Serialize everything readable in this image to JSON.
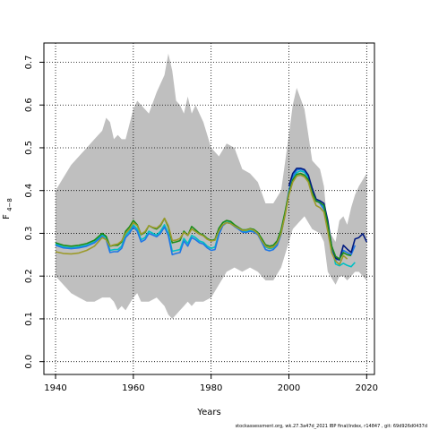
{
  "chart_data": {
    "type": "line",
    "title": "",
    "xlabel": "Years",
    "ylabel": "F",
    "ylabel_subscript": "4−8",
    "xlim": [
      1937,
      2022
    ],
    "ylim": [
      -0.03,
      0.745
    ],
    "xticks": [
      1940,
      1960,
      1980,
      2000,
      2020
    ],
    "yticks": [
      0.0,
      0.1,
      0.2,
      0.3,
      0.4,
      0.5,
      0.6,
      0.7
    ],
    "grid": true,
    "band": {
      "x": [
        1940,
        1942,
        1944,
        1946,
        1948,
        1950,
        1952,
        1953,
        1954,
        1955,
        1956,
        1957,
        1958,
        1960,
        1961,
        1962,
        1964,
        1966,
        1968,
        1969,
        1970,
        1971,
        1972,
        1973,
        1974,
        1975,
        1976,
        1977,
        1978,
        1980,
        1982,
        1984,
        1986,
        1988,
        1990,
        1992,
        1994,
        1996,
        1998,
        2000,
        2001,
        2002,
        2004,
        2006,
        2008,
        2009,
        2010,
        2012,
        2013,
        2014,
        2015,
        2016,
        2017,
        2018,
        2020
      ],
      "upper": [
        0.4,
        0.43,
        0.46,
        0.48,
        0.5,
        0.52,
        0.54,
        0.57,
        0.56,
        0.52,
        0.53,
        0.52,
        0.52,
        0.59,
        0.61,
        0.6,
        0.58,
        0.63,
        0.67,
        0.72,
        0.68,
        0.61,
        0.6,
        0.58,
        0.62,
        0.58,
        0.6,
        0.58,
        0.56,
        0.5,
        0.48,
        0.51,
        0.5,
        0.45,
        0.44,
        0.42,
        0.37,
        0.37,
        0.4,
        0.53,
        0.6,
        0.64,
        0.59,
        0.47,
        0.45,
        0.41,
        0.31,
        0.28,
        0.33,
        0.34,
        0.32,
        0.36,
        0.39,
        0.41,
        0.44
      ],
      "lower": [
        0.2,
        0.18,
        0.16,
        0.15,
        0.14,
        0.14,
        0.15,
        0.15,
        0.15,
        0.14,
        0.12,
        0.13,
        0.12,
        0.15,
        0.16,
        0.14,
        0.14,
        0.15,
        0.13,
        0.11,
        0.1,
        0.11,
        0.12,
        0.13,
        0.14,
        0.13,
        0.14,
        0.14,
        0.14,
        0.15,
        0.18,
        0.21,
        0.22,
        0.21,
        0.22,
        0.21,
        0.19,
        0.19,
        0.22,
        0.28,
        0.31,
        0.32,
        0.34,
        0.31,
        0.3,
        0.28,
        0.21,
        0.18,
        0.2,
        0.2,
        0.19,
        0.2,
        0.21,
        0.21,
        0.19
      ]
    },
    "x": [
      1940,
      1942,
      1944,
      1946,
      1948,
      1950,
      1952,
      1953,
      1954,
      1955,
      1956,
      1957,
      1958,
      1959,
      1960,
      1961,
      1962,
      1963,
      1964,
      1965,
      1966,
      1967,
      1968,
      1969,
      1970,
      1971,
      1972,
      1973,
      1974,
      1975,
      1976,
      1977,
      1978,
      1979,
      1980,
      1981,
      1982,
      1983,
      1984,
      1985,
      1986,
      1987,
      1988,
      1989,
      1990,
      1991,
      1992,
      1993,
      1994,
      1995,
      1996,
      1997,
      1998,
      1999,
      2000,
      2001,
      2002,
      2003,
      2004,
      2005,
      2006,
      2007,
      2008,
      2009,
      2010,
      2011,
      2012,
      2013,
      2014,
      2015,
      2016,
      2017,
      2018,
      2019,
      2020
    ],
    "series": [
      {
        "color": "#00bfc4",
        "values": [
          0.275,
          0.268,
          0.266,
          0.268,
          0.272,
          0.28,
          0.297,
          0.29,
          0.26,
          0.262,
          0.262,
          0.27,
          0.295,
          0.305,
          0.32,
          0.31,
          0.285,
          0.29,
          0.305,
          0.3,
          0.296,
          0.305,
          0.32,
          0.3,
          0.258,
          0.26,
          0.262,
          0.288,
          0.276,
          0.295,
          0.29,
          0.282,
          0.279,
          0.27,
          0.265,
          0.268,
          0.3,
          0.32,
          0.326,
          0.325,
          0.318,
          0.312,
          0.305,
          0.304,
          0.307,
          0.305,
          0.3,
          0.285,
          0.268,
          0.264,
          0.266,
          0.275,
          0.3,
          0.345,
          0.395,
          0.425,
          0.442,
          0.446,
          0.443,
          0.43,
          0.4,
          0.378,
          0.372,
          0.36,
          0.32,
          0.27,
          0.228,
          0.224,
          0.23,
          0.225,
          0.222,
          0.232,
          null,
          null,
          null
        ]
      },
      {
        "color": "#1f77e6",
        "values": [
          0.272,
          0.266,
          0.264,
          0.266,
          0.27,
          0.278,
          0.293,
          0.285,
          0.255,
          0.257,
          0.257,
          0.265,
          0.29,
          0.3,
          0.315,
          0.305,
          0.28,
          0.285,
          0.3,
          0.296,
          0.292,
          0.3,
          0.315,
          0.295,
          0.25,
          0.253,
          0.255,
          0.282,
          0.27,
          0.29,
          0.285,
          0.278,
          0.275,
          0.266,
          0.26,
          0.262,
          0.297,
          0.318,
          0.325,
          0.323,
          0.316,
          0.31,
          0.303,
          0.302,
          0.305,
          0.303,
          0.297,
          0.28,
          0.262,
          0.259,
          0.262,
          0.272,
          0.298,
          0.345,
          0.4,
          0.432,
          0.448,
          0.45,
          0.447,
          0.434,
          0.402,
          0.378,
          0.37,
          0.356,
          0.31,
          0.26,
          0.238,
          0.24,
          0.26,
          0.255,
          0.25,
          0.272,
          null,
          null,
          null
        ]
      },
      {
        "color": "#001a80",
        "values": [
          null,
          null,
          null,
          null,
          null,
          null,
          null,
          null,
          null,
          null,
          null,
          null,
          null,
          null,
          null,
          null,
          null,
          null,
          null,
          null,
          null,
          null,
          null,
          null,
          null,
          null,
          null,
          null,
          null,
          null,
          null,
          null,
          null,
          null,
          null,
          null,
          null,
          null,
          null,
          null,
          null,
          null,
          null,
          null,
          null,
          null,
          null,
          null,
          null,
          null,
          null,
          null,
          null,
          null,
          0.41,
          0.44,
          0.452,
          0.452,
          0.449,
          0.436,
          0.405,
          0.38,
          0.376,
          0.37,
          0.33,
          0.27,
          0.242,
          0.238,
          0.272,
          0.263,
          0.255,
          0.287,
          0.29,
          0.299,
          0.28
        ]
      },
      {
        "color": "#1a8c1a",
        "values": [
          0.278,
          0.272,
          0.27,
          0.272,
          0.276,
          0.284,
          0.3,
          0.293,
          0.27,
          0.272,
          0.272,
          0.28,
          0.305,
          0.315,
          0.33,
          0.32,
          0.297,
          0.302,
          0.318,
          0.313,
          0.31,
          0.318,
          0.335,
          0.315,
          0.278,
          0.28,
          0.283,
          0.305,
          0.295,
          0.316,
          0.308,
          0.3,
          0.296,
          0.288,
          0.283,
          0.286,
          0.312,
          0.325,
          0.33,
          0.328,
          0.32,
          0.314,
          0.308,
          0.308,
          0.311,
          0.309,
          0.302,
          0.288,
          0.273,
          0.27,
          0.272,
          0.283,
          0.308,
          0.35,
          0.395,
          0.425,
          0.438,
          0.44,
          0.436,
          0.425,
          0.395,
          0.375,
          0.372,
          0.365,
          0.32,
          0.27,
          0.246,
          0.24,
          0.255,
          0.25,
          0.248,
          null,
          null,
          null,
          null
        ]
      },
      {
        "color": "#9c9a2a",
        "values": [
          0.257,
          0.253,
          0.252,
          0.254,
          0.26,
          0.27,
          0.29,
          0.285,
          0.27,
          0.273,
          0.275,
          0.282,
          0.3,
          0.31,
          0.325,
          0.318,
          0.298,
          0.304,
          0.318,
          0.314,
          0.312,
          0.32,
          0.335,
          0.318,
          0.283,
          0.284,
          0.288,
          0.302,
          0.295,
          0.31,
          0.304,
          0.298,
          0.294,
          0.286,
          0.282,
          0.284,
          0.306,
          0.32,
          0.325,
          0.323,
          0.317,
          0.312,
          0.307,
          0.307,
          0.31,
          0.307,
          0.299,
          0.283,
          0.27,
          0.266,
          0.268,
          0.278,
          0.3,
          0.342,
          0.39,
          0.42,
          0.434,
          0.436,
          0.432,
          0.42,
          0.388,
          0.365,
          0.36,
          0.35,
          0.305,
          0.255,
          0.235,
          0.227,
          0.248,
          0.24,
          null,
          null,
          null,
          null,
          null
        ]
      }
    ]
  },
  "footer": {
    "text": "stockassessment.org, wk.27.3a47d_2021 IBP final/index, r14847 , git: 69d926d0437d"
  }
}
